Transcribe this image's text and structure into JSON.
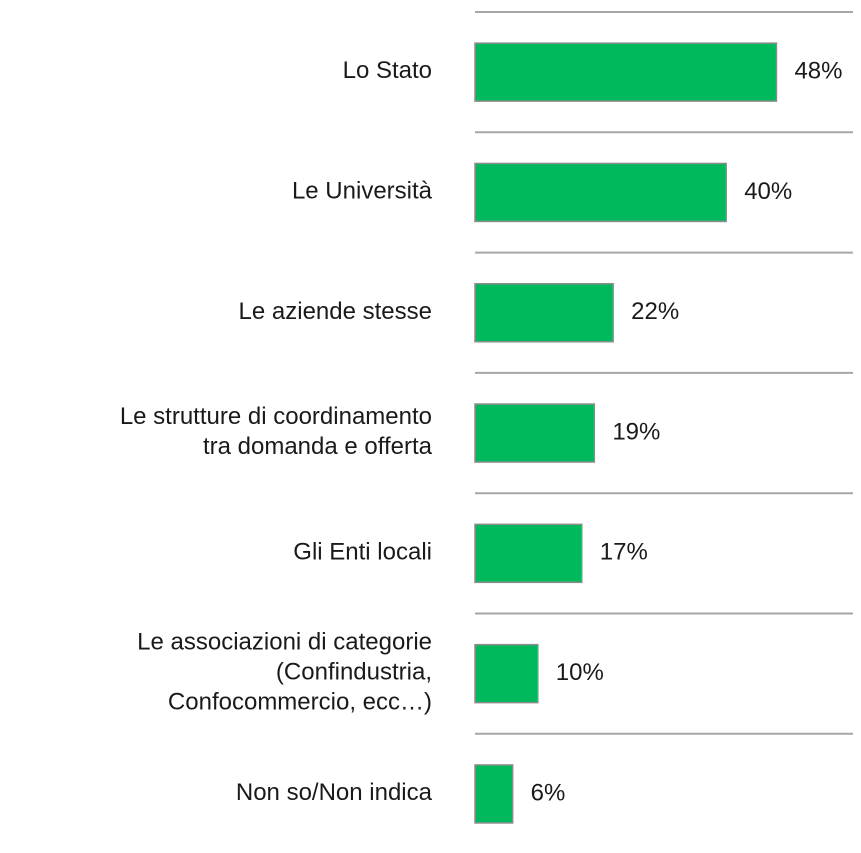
{
  "chart_data": {
    "type": "bar",
    "orientation": "horizontal",
    "categories": [
      "Lo Stato",
      "Le Università",
      "Le aziende stesse",
      "Le strutture di coordinamento\ntra domanda e offerta",
      "Gli Enti locali",
      "Le associazioni di categorie\n(Confindustria,\nConfocommercio, ecc…)",
      "Non so/Non indica"
    ],
    "values": [
      48,
      40,
      22,
      19,
      17,
      10,
      6
    ],
    "value_labels": [
      "48%",
      "40%",
      "22%",
      "19%",
      "17%",
      "10%",
      "6%"
    ],
    "color": "#00b95c"
  }
}
